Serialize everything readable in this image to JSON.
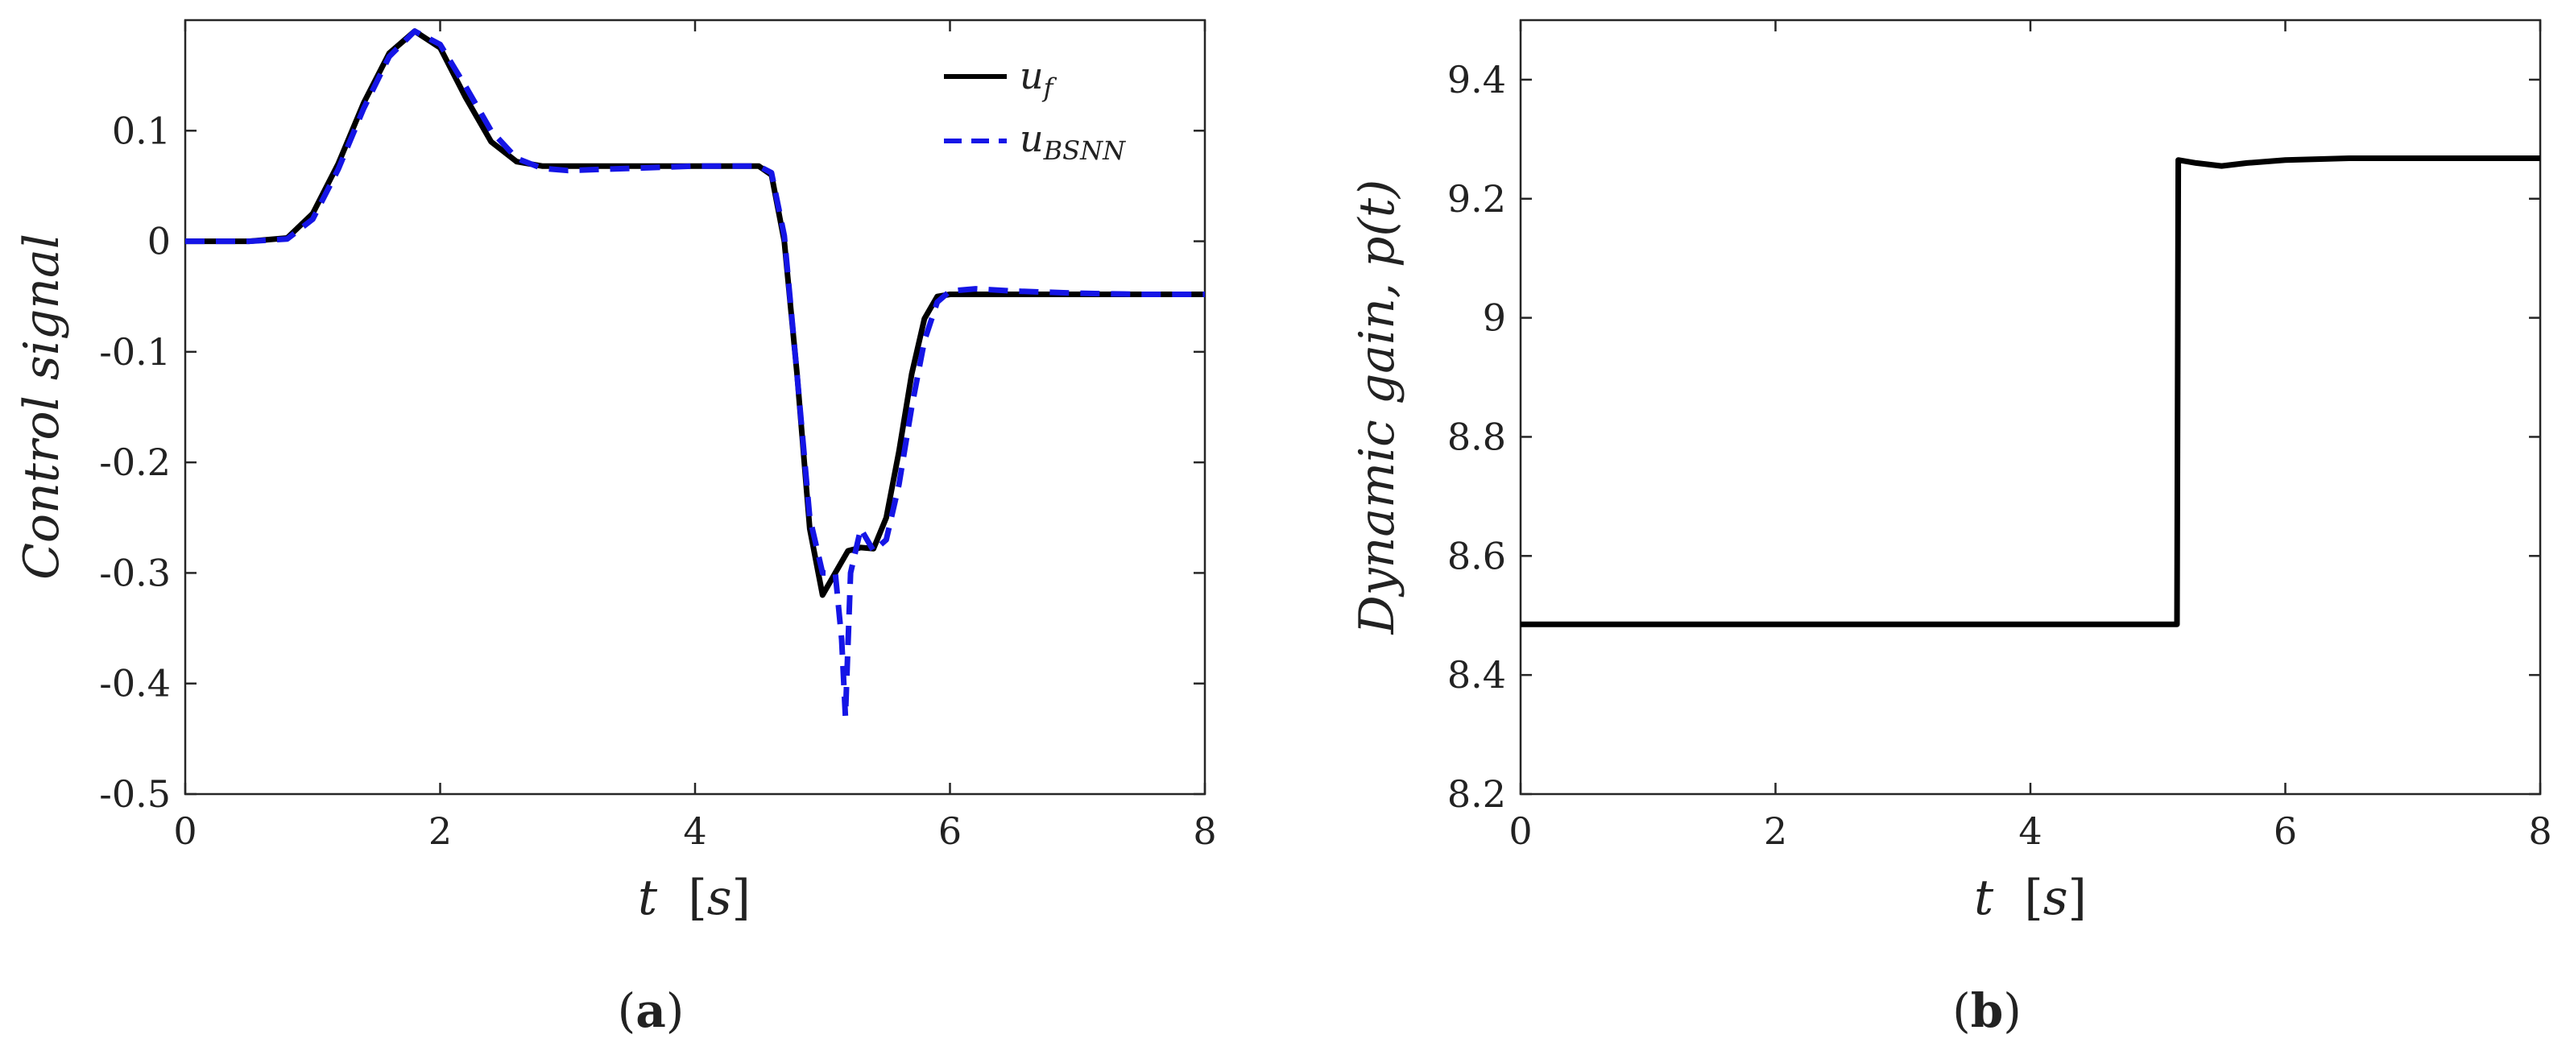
{
  "chart_data": [
    {
      "type": "line",
      "panel_label": "a",
      "xlabel": "t",
      "xunit": "s",
      "ylabel": "Control signal",
      "xlim": [
        0,
        8
      ],
      "ylim": [
        -0.5,
        0.2
      ],
      "xticks": [
        0,
        2,
        4,
        6,
        8
      ],
      "xtick_labels": [
        "0",
        "2",
        "4",
        "6",
        "8"
      ],
      "yticks": [
        0.1,
        0,
        -0.1,
        -0.2,
        -0.3,
        -0.4,
        -0.5
      ],
      "ytick_labels": [
        "0.1",
        "0",
        "-0.1",
        "-0.2",
        "-0.3",
        "-0.4",
        "-0.5"
      ],
      "grid": false,
      "legend_position": "top-right",
      "series": [
        {
          "name": "u_f",
          "legend_base": "u",
          "legend_sub": "f",
          "color": "#000000",
          "style": "solid",
          "x": [
            0,
            0.5,
            0.8,
            1.0,
            1.2,
            1.4,
            1.6,
            1.8,
            2.0,
            2.2,
            2.4,
            2.6,
            2.8,
            3.0,
            3.5,
            4.0,
            4.5,
            4.6,
            4.7,
            4.8,
            4.9,
            5.0,
            5.1,
            5.2,
            5.3,
            5.4,
            5.5,
            5.6,
            5.7,
            5.8,
            5.9,
            6.0,
            6.5,
            7.0,
            7.5,
            8.0
          ],
          "y": [
            0,
            0,
            0.003,
            0.025,
            0.07,
            0.125,
            0.17,
            0.19,
            0.175,
            0.13,
            0.09,
            0.072,
            0.068,
            0.068,
            0.068,
            0.068,
            0.068,
            0.06,
            0.0,
            -0.12,
            -0.26,
            -0.32,
            -0.3,
            -0.28,
            -0.277,
            -0.278,
            -0.25,
            -0.19,
            -0.12,
            -0.07,
            -0.05,
            -0.048,
            -0.048,
            -0.048,
            -0.048,
            -0.048
          ]
        },
        {
          "name": "u_BSNN",
          "legend_base": "u",
          "legend_sub": "BSNN",
          "color": "#1515e6",
          "style": "dashed",
          "x": [
            0,
            0.5,
            0.8,
            1.0,
            1.2,
            1.4,
            1.6,
            1.8,
            2.0,
            2.2,
            2.4,
            2.6,
            2.8,
            3.0,
            3.5,
            4.0,
            4.5,
            4.6,
            4.7,
            4.8,
            4.9,
            5.0,
            5.1,
            5.15,
            5.18,
            5.22,
            5.3,
            5.4,
            5.5,
            5.6,
            5.7,
            5.8,
            5.9,
            6.0,
            6.2,
            6.5,
            7.0,
            7.5,
            8.0
          ],
          "y": [
            0,
            0,
            0.002,
            0.02,
            0.065,
            0.12,
            0.167,
            0.19,
            0.178,
            0.14,
            0.1,
            0.075,
            0.066,
            0.064,
            0.066,
            0.068,
            0.068,
            0.062,
            0.005,
            -0.12,
            -0.25,
            -0.3,
            -0.3,
            -0.36,
            -0.43,
            -0.3,
            -0.26,
            -0.28,
            -0.27,
            -0.22,
            -0.15,
            -0.09,
            -0.055,
            -0.045,
            -0.043,
            -0.045,
            -0.047,
            -0.048,
            -0.048
          ]
        }
      ]
    },
    {
      "type": "line",
      "panel_label": "b",
      "xlabel": "t",
      "xunit": "s",
      "ylabel": "Dynamic gain, p(t)",
      "xlim": [
        0,
        8
      ],
      "ylim": [
        8.2,
        9.5
      ],
      "xticks": [
        0,
        2,
        4,
        6,
        8
      ],
      "xtick_labels": [
        "0",
        "2",
        "4",
        "6",
        "8"
      ],
      "yticks": [
        9.4,
        9.2,
        9,
        8.8,
        8.6,
        8.4,
        8.2
      ],
      "ytick_labels": [
        "9.4",
        "9.2",
        "9",
        "8.8",
        "8.6",
        "8.4",
        "8.2"
      ],
      "grid": false,
      "series": [
        {
          "color": "#000000",
          "style": "solid",
          "x": [
            0,
            5.15,
            5.16,
            5.3,
            5.5,
            5.7,
            6.0,
            6.5,
            7.0,
            8.0
          ],
          "y": [
            8.485,
            8.485,
            9.265,
            9.26,
            9.255,
            9.26,
            9.265,
            9.268,
            9.268,
            9.268
          ]
        }
      ]
    }
  ]
}
